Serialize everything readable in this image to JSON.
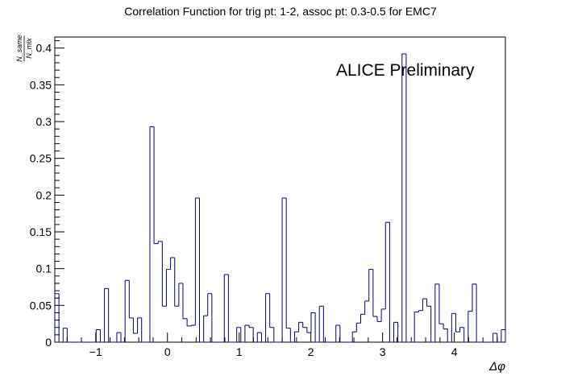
{
  "chart_data": {
    "type": "bar",
    "title": "Correlation Function for trig pt: 1-2, assoc pt: 0.3-0.5 for EMC7",
    "annotation": "ALICE Preliminary",
    "xlabel": "Δφ",
    "ylabel_num": "N_same",
    "ylabel_den": "N_mix",
    "xlim": [
      -1.5708,
      4.7124
    ],
    "ylim": [
      0,
      0.415
    ],
    "xticks": [
      -1,
      0,
      1,
      2,
      3,
      4
    ],
    "xtick_labels": [
      "−1",
      "0",
      "1",
      "2",
      "3",
      "4"
    ],
    "yticks": [
      0,
      0.05,
      0.1,
      0.15,
      0.2,
      0.25,
      0.3,
      0.35,
      0.4
    ],
    "ytick_labels": [
      "0",
      "0.05",
      "0.1",
      "0.15",
      "0.2",
      "0.25",
      "0.3",
      "0.35",
      "0.4"
    ],
    "grid": false,
    "histogram": true,
    "bin_width": 0.0873,
    "values": [
      0.066,
      0.0,
      0.019,
      0.0,
      0.0,
      0.0,
      0.0,
      0.0,
      0.0,
      0.0,
      0.017,
      0.0,
      0.073,
      0.0,
      0.0,
      0.013,
      0.0,
      0.084,
      0.033,
      0.012,
      0.033,
      0.0,
      0.0,
      0.293,
      0.134,
      0.137,
      0.049,
      0.099,
      0.115,
      0.049,
      0.08,
      0.032,
      0.022,
      0.023,
      0.196,
      0.0,
      0.036,
      0.066,
      0.0,
      0.0,
      0.0,
      0.092,
      0.0,
      0.0,
      0.02,
      0.0,
      0.023,
      0.02,
      0.0,
      0.013,
      0.0,
      0.066,
      0.02,
      0.0,
      0.0,
      0.196,
      0.019,
      0.0,
      0.014,
      0.027,
      0.02,
      0.013,
      0.04,
      0.0,
      0.049,
      0.0,
      0.0,
      0.0,
      0.023,
      0.0,
      0.0,
      0.0,
      0.014,
      0.026,
      0.038,
      0.056,
      0.099,
      0.035,
      0.028,
      0.045,
      0.163,
      0.0,
      0.027,
      0.0,
      0.392,
      0.0,
      0.0,
      0.041,
      0.043,
      0.059,
      0.049,
      0.0,
      0.079,
      0.025,
      0.018,
      0.0,
      0.039,
      0.014,
      0.02,
      0.0,
      0.042,
      0.079,
      0.0,
      0.0,
      0.0,
      0.0,
      0.012,
      0.0,
      0.017
    ],
    "colors": {
      "line": "#000080",
      "axis": "#000000"
    }
  }
}
